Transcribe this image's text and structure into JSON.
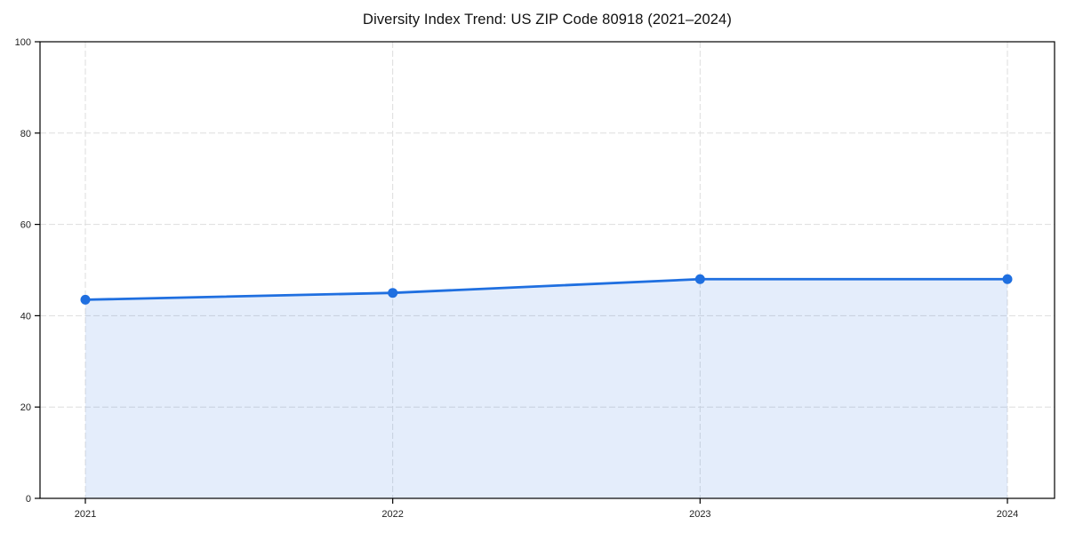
{
  "chart_data": {
    "type": "line",
    "title": "Diversity Index Trend: US ZIP Code 80918 (2021–2024)",
    "x": [
      "2021",
      "2022",
      "2023",
      "2024"
    ],
    "series": [
      {
        "name": "Diversity Index",
        "values": [
          43.5,
          45,
          48,
          48
        ]
      }
    ],
    "xlabel": "",
    "ylabel": "",
    "ylim": [
      0,
      100
    ],
    "yticks": [
      0,
      20,
      40,
      60,
      80,
      100
    ],
    "grid": "dashed-both-axes",
    "legend_position": "none",
    "area_fill": true,
    "colors": {
      "line": "#1f6fe0",
      "marker": "#1f6fe0",
      "area_fill": "rgba(31,111,224,0.12)",
      "gridline": "#dddddd",
      "spine": "#000000",
      "tick_label": "#222222",
      "title": "#111111",
      "background": "#ffffff"
    }
  }
}
